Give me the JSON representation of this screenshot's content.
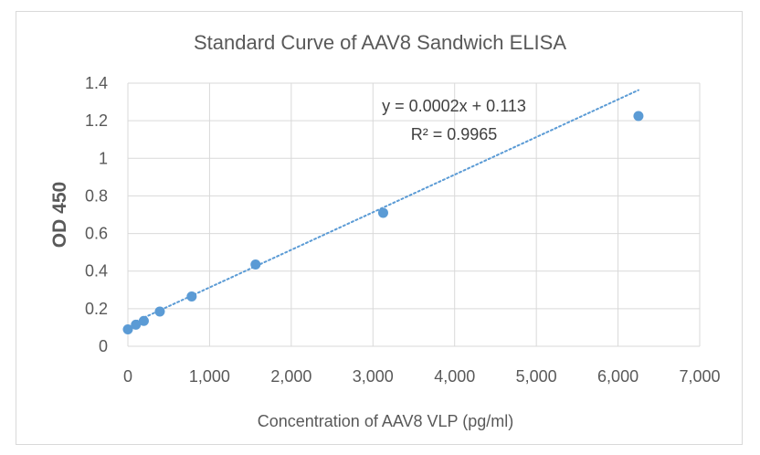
{
  "chart_data": {
    "type": "scatter",
    "title": "Standard Curve of AAV8 Sandwich ELISA",
    "xlabel": "Concentration of AAV8 VLP (pg/ml)",
    "ylabel": "OD 450",
    "xlim": [
      0,
      7000
    ],
    "ylim": [
      0,
      1.4
    ],
    "x_ticks": [
      "0",
      "1,000",
      "2,000",
      "3,000",
      "4,000",
      "5,000",
      "6,000",
      "7,000"
    ],
    "y_ticks": [
      "0",
      "0.2",
      "0.4",
      "0.6",
      "0.8",
      "1",
      "1.2",
      "1.4"
    ],
    "grid": true,
    "legend": "none",
    "series": [
      {
        "x": [
          0,
          98,
          195,
          391,
          781,
          1563,
          3125,
          6250
        ],
        "y": [
          0.09,
          0.115,
          0.135,
          0.185,
          0.265,
          0.435,
          0.71,
          1.225
        ]
      }
    ],
    "trendline": {
      "type": "linear",
      "style": "dotted",
      "slope": 0.0002,
      "intercept": 0.113,
      "x_range": [
        98,
        6250
      ],
      "equation": "y = 0.0002x + 0.113",
      "r_squared": "R² = 0.9965"
    },
    "colors": {
      "series": "#5b9bd5",
      "grid": "#d9d9d9",
      "text": "#595959"
    }
  }
}
